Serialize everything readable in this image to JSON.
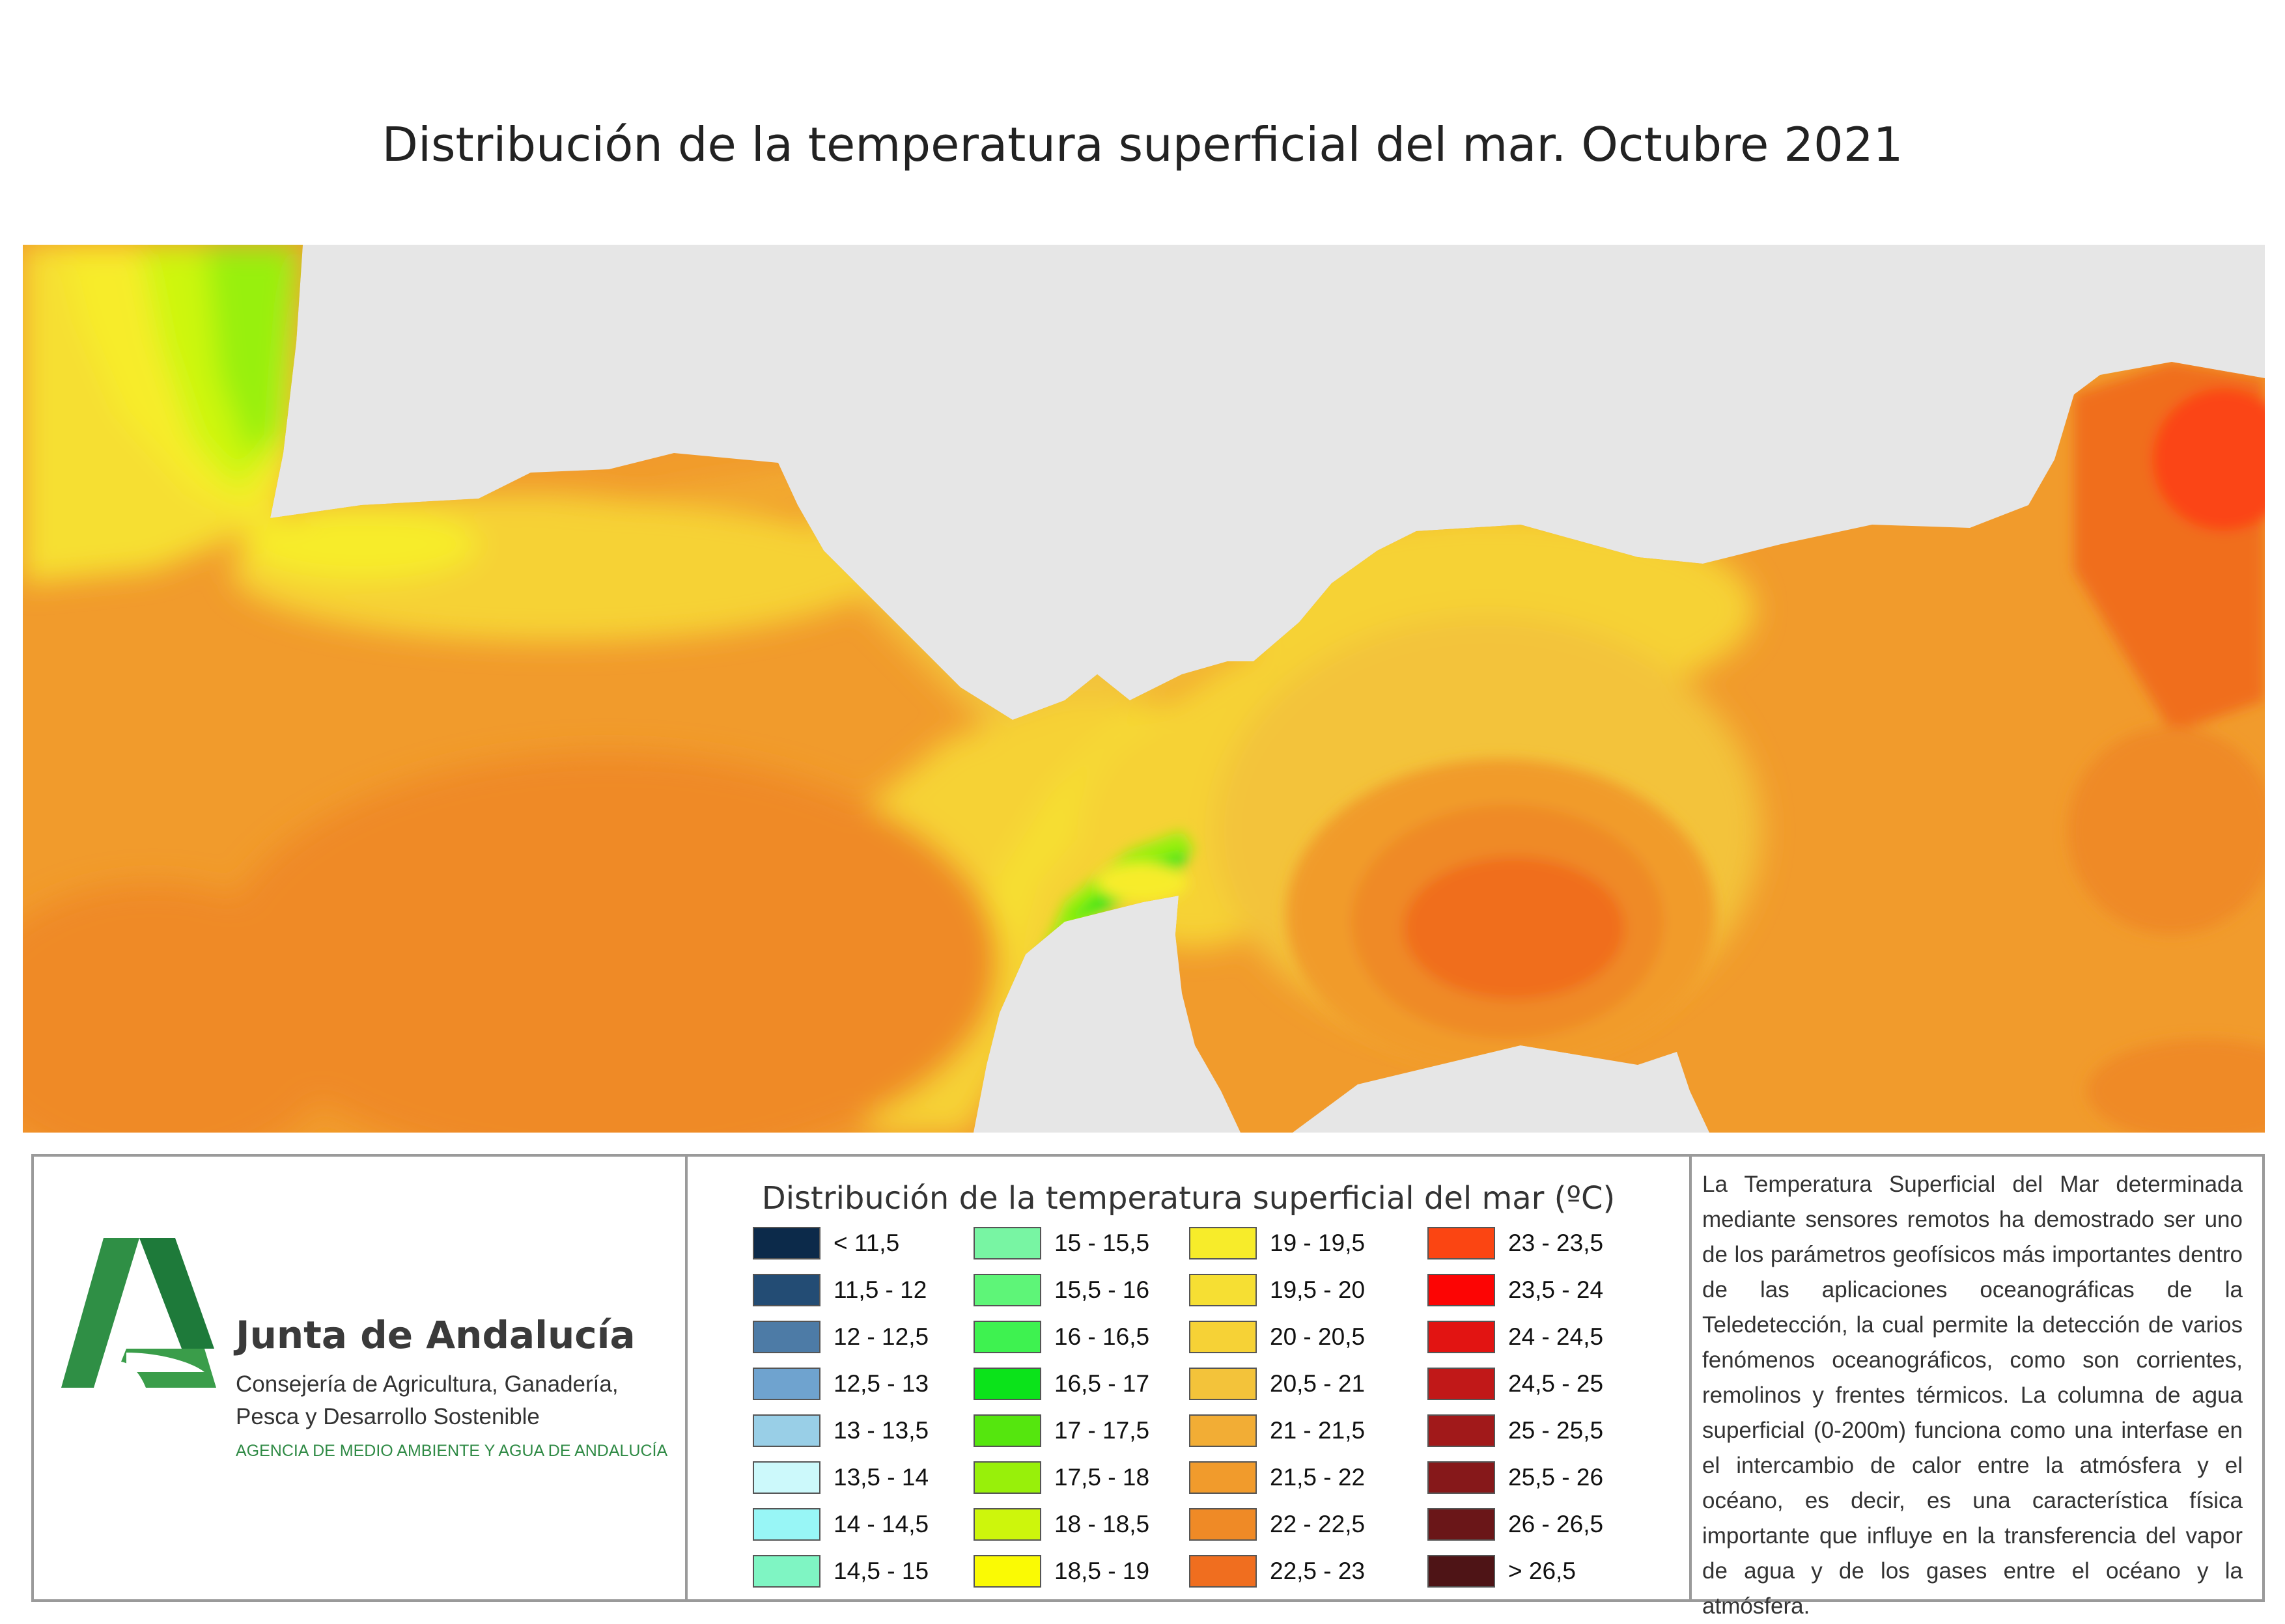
{
  "title": "Distribución de la temperatura superficial del mar. Octubre 2021",
  "colors": {
    "land": "#e6e6e6",
    "frame": "#9a9a9a",
    "logo_green_light": "#3a9d4a",
    "logo_green_dark": "#1e7a3a"
  },
  "organization": {
    "name": "Junta de Andalucía",
    "department_line1": "Consejería de Agricultura, Ganadería,",
    "department_line2": "Pesca y Desarrollo Sostenible",
    "agency": "AGENCIA DE MEDIO AMBIENTE Y AGUA DE ANDALUCÍA",
    "logo_icon": "junta-de-andalucia-logo"
  },
  "legend": {
    "title": "Distribución de la temperatura superficial del mar (ºC)",
    "items": [
      {
        "label": "< 11,5",
        "color": "#0c2a4a"
      },
      {
        "label": "11,5 - 12",
        "color": "#234c74"
      },
      {
        "label": "12 - 12,5",
        "color": "#4d7ba6"
      },
      {
        "label": "12,5 - 13",
        "color": "#6fa3cf"
      },
      {
        "label": "13 - 13,5",
        "color": "#99cfe7"
      },
      {
        "label": "13,5 - 14",
        "color": "#ccf9fb"
      },
      {
        "label": "14 - 14,5",
        "color": "#98f6f6"
      },
      {
        "label": "14,5 - 15",
        "color": "#7ff5c3"
      },
      {
        "label": "15 - 15,5",
        "color": "#78f5a3"
      },
      {
        "label": "15,5 - 16",
        "color": "#5ef578"
      },
      {
        "label": "16 - 16,5",
        "color": "#3ef250"
      },
      {
        "label": "16,5 - 17",
        "color": "#0be31a"
      },
      {
        "label": "17 - 17,5",
        "color": "#55e60e"
      },
      {
        "label": "17,5 - 18",
        "color": "#98f00a"
      },
      {
        "label": "18 - 18,5",
        "color": "#cdf60c"
      },
      {
        "label": "18,5 - 19",
        "color": "#fafa04"
      },
      {
        "label": "19 - 19,5",
        "color": "#f7ec2a"
      },
      {
        "label": "19,5 - 20",
        "color": "#f6df33"
      },
      {
        "label": "20 - 20,5",
        "color": "#f6d236"
      },
      {
        "label": "20,5 - 21",
        "color": "#f3c33a"
      },
      {
        "label": "21 - 21,5",
        "color": "#f2ad35"
      },
      {
        "label": "21,5 - 22",
        "color": "#f19b2c"
      },
      {
        "label": "22 - 22,5",
        "color": "#ef8a26"
      },
      {
        "label": "22,5 - 23",
        "color": "#f06e1f"
      },
      {
        "label": "23 - 23,5",
        "color": "#fb4512"
      },
      {
        "label": "23,5 - 24",
        "color": "#fc0504"
      },
      {
        "label": "24 - 24,5",
        "color": "#e21412"
      },
      {
        "label": "24,5 - 25",
        "color": "#c11818"
      },
      {
        "label": "25 - 25,5",
        "color": "#a1191a"
      },
      {
        "label": "25,5 - 26",
        "color": "#86181a"
      },
      {
        "label": "26 - 26,5",
        "color": "#6a1618"
      },
      {
        "label": "> 26,5",
        "color": "#4e1416"
      }
    ]
  },
  "description": "La Temperatura Superficial del Mar determinada mediante sensores remotos ha demostrado ser uno de los parámetros geofísicos más importantes dentro de las aplicaciones oceanográficas de la Teledetección, la cual permite la detección de varios fenómenos oceanográficos, como son corrientes, remolinos y frentes térmicos. La columna de agua superficial (0-200m) funciona como una interfase en el intercambio de calor entre la atmósfera y el océano, es decir, es una característica física importante que influye en la transferencia del vapor de agua y de los gases entre el océano y la atmósfera."
}
